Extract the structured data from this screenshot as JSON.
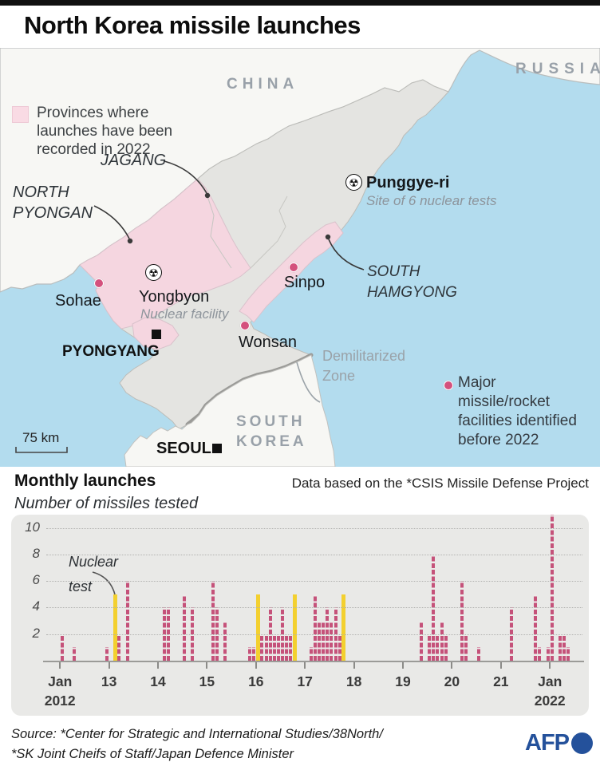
{
  "page": {
    "title": "North Korea missile launches"
  },
  "map": {
    "legend_provinces": "Provinces where launches have been recorded in 2022",
    "legend_facilities": "Major missile/rocket facilities identified before 2022",
    "countries": {
      "china": "CHINA",
      "russia": "RUSSIA",
      "south_korea": "SOUTH KOREA"
    },
    "provinces": {
      "jagang": "JAGANG",
      "north_pyongan": "NORTH PYONGAN",
      "south_hamgyong": "SOUTH HAMGYONG"
    },
    "places": {
      "punggye_ri": "Punggye-ri",
      "punggye_ri_note": "Site of 6 nuclear tests",
      "yongbyon": "Yongbyon",
      "yongbyon_note": "Nuclear facility",
      "sohae": "Sohae",
      "sinpo": "Sinpo",
      "wonsan": "Wonsan",
      "pyongyang": "PYONGYANG",
      "seoul": "SEOUL",
      "dmz": "Demilitarized Zone"
    },
    "scale": "75 km",
    "colors": {
      "water": "#b3dcee",
      "land": "#f7f7f4",
      "nk_gray": "#e4e4e1",
      "province_pink": "#f5d6e0",
      "facility_dot": "#d4517d"
    }
  },
  "chart": {
    "heading": "Monthly launches",
    "subheading": "Number of missiles tested",
    "source_note": "Data based on the *CSIS Missile Defense Project",
    "annotation": "Nuclear test",
    "y_ticks": [
      2,
      4,
      6,
      8,
      10
    ],
    "x_ticks": [
      {
        "label": "Jan",
        "sublabel": "2012"
      },
      {
        "label": "13"
      },
      {
        "label": "14"
      },
      {
        "label": "15"
      },
      {
        "label": "16"
      },
      {
        "label": "17"
      },
      {
        "label": "18"
      },
      {
        "label": "19"
      },
      {
        "label": "20"
      },
      {
        "label": "21"
      },
      {
        "label": "Jan",
        "sublabel": "2022"
      }
    ]
  },
  "chart_data": {
    "type": "bar",
    "title": "Monthly launches",
    "ylabel": "Number of missiles tested",
    "x_range": [
      "Jan 2012",
      "Jan 2022"
    ],
    "ylim": [
      0,
      11
    ],
    "grid": "dotted horizontal",
    "bar_color": "#c5527a",
    "nuclear_color": "#f3d02f",
    "nuclear_marker_height": 5,
    "launches": [
      {
        "date": "2012-01",
        "missiles": 2
      },
      {
        "date": "2012-04",
        "missiles": 1
      },
      {
        "date": "2012-12",
        "missiles": 1
      },
      {
        "date": "2013-03",
        "missiles": 2
      },
      {
        "date": "2013-05",
        "missiles": 6
      },
      {
        "date": "2014-02",
        "missiles": 4
      },
      {
        "date": "2014-03",
        "missiles": 4
      },
      {
        "date": "2014-07",
        "missiles": 5
      },
      {
        "date": "2014-09",
        "missiles": 4
      },
      {
        "date": "2015-02",
        "missiles": 6
      },
      {
        "date": "2015-03",
        "missiles": 4
      },
      {
        "date": "2015-05",
        "missiles": 3
      },
      {
        "date": "2015-11",
        "missiles": 1
      },
      {
        "date": "2015-12",
        "missiles": 1
      },
      {
        "date": "2016-02",
        "missiles": 2
      },
      {
        "date": "2016-03",
        "missiles": 2
      },
      {
        "date": "2016-04",
        "missiles": 4
      },
      {
        "date": "2016-05",
        "missiles": 2
      },
      {
        "date": "2016-06",
        "missiles": 2
      },
      {
        "date": "2016-07",
        "missiles": 4
      },
      {
        "date": "2016-08",
        "missiles": 2
      },
      {
        "date": "2016-09",
        "missiles": 2
      },
      {
        "date": "2016-10",
        "missiles": 2
      },
      {
        "date": "2017-02",
        "missiles": 1
      },
      {
        "date": "2017-03",
        "missiles": 5
      },
      {
        "date": "2017-04",
        "missiles": 3
      },
      {
        "date": "2017-05",
        "missiles": 3
      },
      {
        "date": "2017-06",
        "missiles": 4
      },
      {
        "date": "2017-07",
        "missiles": 3
      },
      {
        "date": "2017-08",
        "missiles": 4
      },
      {
        "date": "2017-09",
        "missiles": 2
      },
      {
        "date": "2019-05",
        "missiles": 3
      },
      {
        "date": "2019-07",
        "missiles": 2
      },
      {
        "date": "2019-08",
        "missiles": 8
      },
      {
        "date": "2019-09",
        "missiles": 2
      },
      {
        "date": "2019-10",
        "missiles": 3
      },
      {
        "date": "2019-11",
        "missiles": 2
      },
      {
        "date": "2020-03",
        "missiles": 6
      },
      {
        "date": "2020-04",
        "missiles": 2
      },
      {
        "date": "2020-07",
        "missiles": 1
      },
      {
        "date": "2021-03",
        "missiles": 4
      },
      {
        "date": "2021-09",
        "missiles": 5
      },
      {
        "date": "2021-10",
        "missiles": 1
      },
      {
        "date": "2021-12",
        "missiles": 1
      },
      {
        "date": "2022-01",
        "missiles": 11
      },
      {
        "date": "2022-03",
        "missiles": 2
      },
      {
        "date": "2022-04",
        "missiles": 2
      },
      {
        "date": "2022-05",
        "missiles": 1
      }
    ],
    "nuclear_tests": [
      "2013-02",
      "2016-01",
      "2016-09",
      "2017-09"
    ]
  },
  "footer": {
    "source_line1": "Source: *Center for Strategic and International Studies/38North/",
    "source_line2": "*SK Joint Cheifs of Staff/Japan Defence Minister",
    "brand": "AFP"
  }
}
